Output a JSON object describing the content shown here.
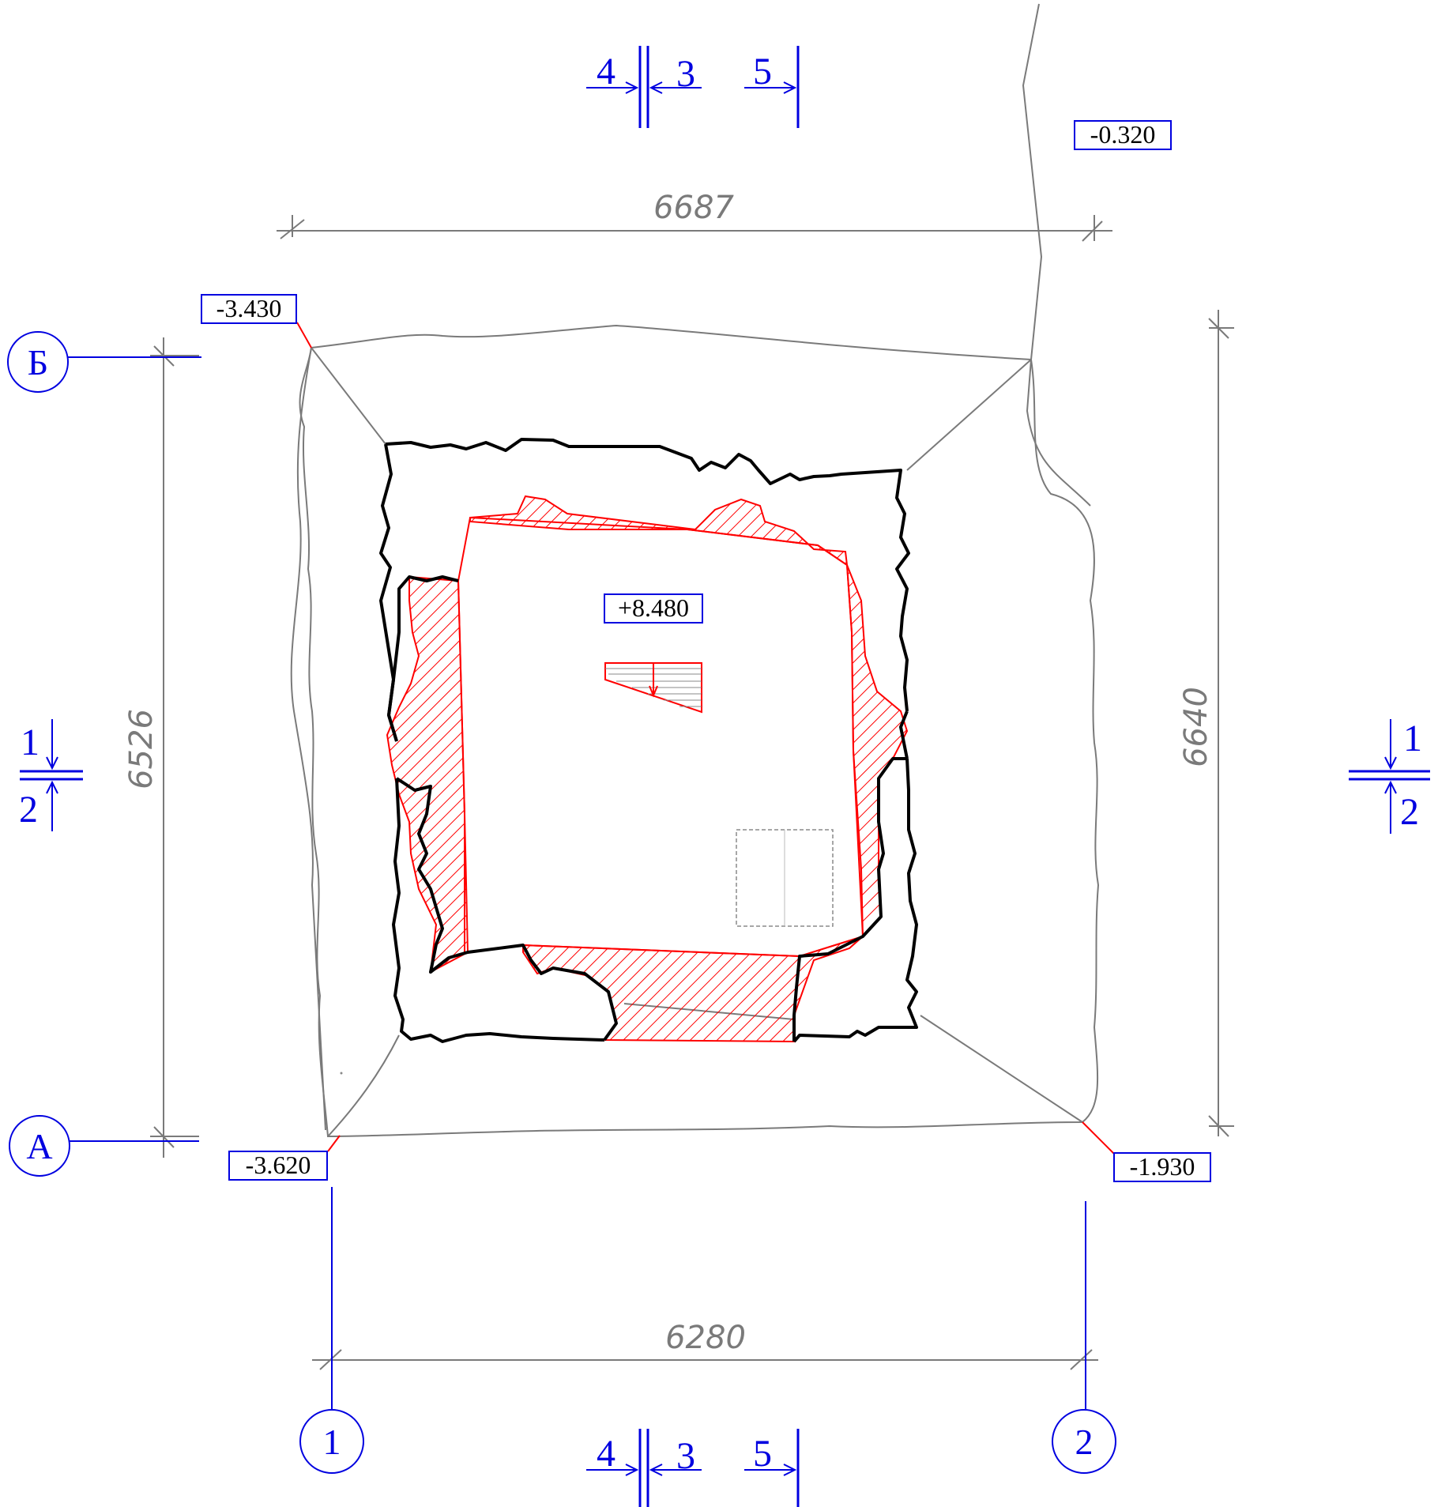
{
  "dimensions": {
    "top": "6687",
    "bottom": "6280",
    "left": "6526",
    "right": "6640"
  },
  "axes": {
    "row_top": "Б",
    "row_bottom": "А",
    "col_left": "1",
    "col_right": "2"
  },
  "section_marks": {
    "left": {
      "upper": "1",
      "lower": "2"
    },
    "right": {
      "upper": "1",
      "lower": "2"
    },
    "top": {
      "a": "4",
      "b": "3",
      "c": "5"
    },
    "bottom": {
      "a": "4",
      "b": "3",
      "c": "5"
    }
  },
  "elevations": {
    "top_right": "-0.320",
    "top_left": "-3.430",
    "bottom_left": "-3.620",
    "bottom_right": "-1.930",
    "center": "+8.480"
  },
  "colors": {
    "annotation": "#0000e0",
    "cut_hatch": "#ff0000",
    "contour": "#000000",
    "dimension": "#7a7a7a"
  }
}
